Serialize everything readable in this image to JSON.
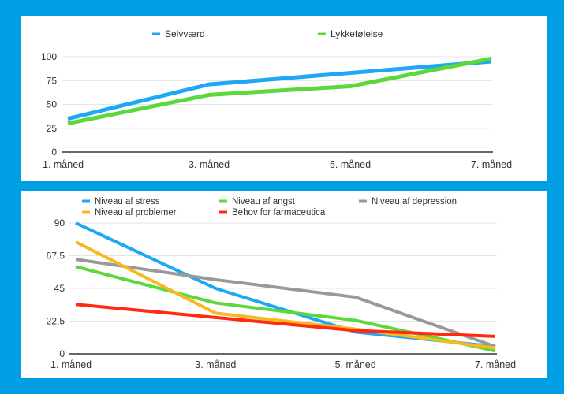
{
  "chart_data": [
    {
      "type": "line",
      "title": "",
      "categories": [
        "1. måned",
        "3. måned",
        "5. måned",
        "7. måned"
      ],
      "ylim": [
        0,
        100
      ],
      "yticks": [
        "0",
        "25",
        "50",
        "75",
        "100"
      ],
      "ytick_values": [
        0,
        25,
        50,
        75,
        100
      ],
      "grid": true,
      "legend": "top-center",
      "series": [
        {
          "name": "Selvværd",
          "color": "#1ea7f5",
          "values": [
            35,
            71,
            83,
            95
          ]
        },
        {
          "name": "Lykkefølelse",
          "color": "#5bd83a",
          "values": [
            30,
            60,
            69,
            98
          ]
        }
      ]
    },
    {
      "type": "line",
      "title": "",
      "categories": [
        "1. måned",
        "3. måned",
        "5. måned",
        "7. måned"
      ],
      "ylim": [
        0,
        90
      ],
      "yticks": [
        "0",
        "22,5",
        "45",
        "67,5",
        "90"
      ],
      "ytick_values": [
        0,
        22.5,
        45,
        67.5,
        90
      ],
      "grid": true,
      "legend": "top",
      "series": [
        {
          "name": "Niveau af stress",
          "color": "#1ea7f5",
          "values": [
            90,
            45,
            15,
            5
          ]
        },
        {
          "name": "Niveau af angst",
          "color": "#5bd83a",
          "values": [
            60,
            35,
            23,
            2
          ]
        },
        {
          "name": "Niveau af depression",
          "color": "#999999",
          "values": [
            65,
            51,
            39,
            5
          ]
        },
        {
          "name": "Niveau af problemer",
          "color": "#f8b820",
          "values": [
            77,
            28,
            17,
            4
          ]
        },
        {
          "name": "Behov for farmaceutica",
          "color": "#ff2a10",
          "values": [
            34,
            25,
            16,
            12
          ]
        }
      ]
    }
  ]
}
